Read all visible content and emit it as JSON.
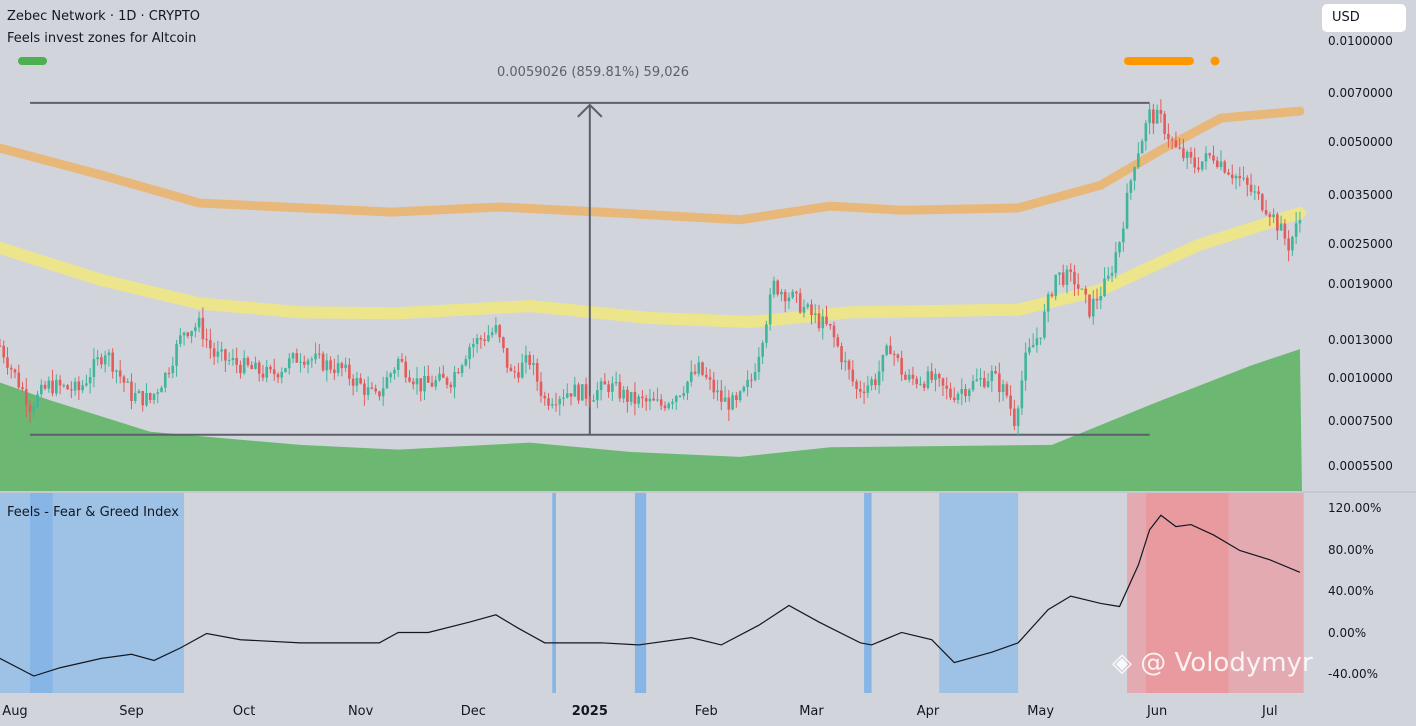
{
  "header": {
    "symbol_line": "Zebec Network · 1D · CRYPTO",
    "indicator_name": "Feels invest zones for Altcoin",
    "currency_button": "USD"
  },
  "lower_pane": {
    "title": "Feels - Fear & Greed Index"
  },
  "watermark": "@ Volodymyr",
  "colors": {
    "background": "#d2d4dc",
    "candle_up": "#3fb59a",
    "candle_down": "#e25c5c",
    "upper_band": "#e8b87a",
    "middle_band": "#ede58c",
    "lower_zone": "#6cb872",
    "fear_zone": "#9dc2e6",
    "greed_zone": "#e3aab2",
    "index_line": "#131722",
    "measure": "#5d606b"
  },
  "chart_data": [
    {
      "type": "candlestick",
      "title": "Zebec Network · 1D · CRYPTO",
      "y_scale": "log",
      "ylim": [
        0.0005,
        0.0105
      ],
      "xlim": [
        "2024-07-28",
        "2025-07-11"
      ],
      "y_ticks": [
        "0.0100000",
        "0.0070000",
        "0.0050000",
        "0.0035000",
        "0.0025000",
        "0.0019000",
        "0.0013000",
        "0.0010000",
        "0.0007500",
        "0.0005500"
      ],
      "y_tick_values": [
        0.01,
        0.007,
        0.005,
        0.0035,
        0.0025,
        0.0019,
        0.0013,
        0.001,
        0.00075,
        0.00055
      ],
      "x_ticks": [
        {
          "label": "Aug",
          "date": "2024-08-01"
        },
        {
          "label": "Sep",
          "date": "2024-09-01"
        },
        {
          "label": "Oct",
          "date": "2024-10-01"
        },
        {
          "label": "Nov",
          "date": "2024-11-01"
        },
        {
          "label": "Dec",
          "date": "2024-12-01"
        },
        {
          "label": "2025",
          "date": "2025-01-01",
          "year": true
        },
        {
          "label": "Feb",
          "date": "2025-02-01"
        },
        {
          "label": "Mar",
          "date": "2025-03-01"
        },
        {
          "label": "Apr",
          "date": "2025-04-01"
        },
        {
          "label": "May",
          "date": "2025-05-01"
        },
        {
          "label": "Jun",
          "date": "2025-06-01"
        },
        {
          "label": "Jul",
          "date": "2025-07-01"
        }
      ],
      "close_path": [
        [
          "2024-07-28",
          0.00126
        ],
        [
          "2024-08-05",
          0.00084
        ],
        [
          "2024-08-10",
          0.00096
        ],
        [
          "2024-08-18",
          0.00093
        ],
        [
          "2024-08-25",
          0.00122
        ],
        [
          "2024-09-01",
          0.0009
        ],
        [
          "2024-09-06",
          0.00087
        ],
        [
          "2024-09-10",
          0.00103
        ],
        [
          "2024-09-15",
          0.0014
        ],
        [
          "2024-09-19",
          0.00145
        ],
        [
          "2024-09-23",
          0.00118
        ],
        [
          "2024-10-03",
          0.00107
        ],
        [
          "2024-10-08",
          0.00103
        ],
        [
          "2024-10-16",
          0.00118
        ],
        [
          "2024-10-27",
          0.00107
        ],
        [
          "2024-11-05",
          0.00088
        ],
        [
          "2024-11-11",
          0.00114
        ],
        [
          "2024-11-17",
          0.00096
        ],
        [
          "2024-11-25",
          0.001
        ],
        [
          "2024-11-30",
          0.00126
        ],
        [
          "2024-12-07",
          0.0014
        ],
        [
          "2024-12-11",
          0.00103
        ],
        [
          "2024-12-16",
          0.00114
        ],
        [
          "2024-12-20",
          0.00087
        ],
        [
          "2024-12-27",
          0.00093
        ],
        [
          "2025-01-01",
          0.0009
        ],
        [
          "2025-01-06",
          0.00096
        ],
        [
          "2025-01-12",
          0.00087
        ],
        [
          "2025-01-20",
          0.00084
        ],
        [
          "2025-01-25",
          0.00093
        ],
        [
          "2025-01-30",
          0.00107
        ],
        [
          "2025-02-05",
          0.00087
        ],
        [
          "2025-02-09",
          0.00084
        ],
        [
          "2025-02-13",
          0.001
        ],
        [
          "2025-02-15",
          0.00122
        ],
        [
          "2025-02-19",
          0.0019
        ],
        [
          "2025-02-23",
          0.00178
        ],
        [
          "2025-03-01",
          0.00155
        ],
        [
          "2025-03-06",
          0.0014
        ],
        [
          "2025-03-13",
          0.00093
        ],
        [
          "2025-03-18",
          0.001
        ],
        [
          "2025-03-22",
          0.00126
        ],
        [
          "2025-03-26",
          0.001
        ],
        [
          "2025-04-02",
          0.001
        ],
        [
          "2025-04-07",
          0.0009
        ],
        [
          "2025-04-12",
          0.00096
        ],
        [
          "2025-04-18",
          0.00103
        ],
        [
          "2025-04-22",
          0.0009
        ],
        [
          "2025-04-24",
          0.00076
        ],
        [
          "2025-04-27",
          0.00114
        ],
        [
          "2025-05-01",
          0.0014
        ],
        [
          "2025-05-05",
          0.00204
        ],
        [
          "2025-05-10",
          0.00197
        ],
        [
          "2025-05-14",
          0.00161
        ],
        [
          "2025-05-19",
          0.00197
        ],
        [
          "2025-05-22",
          0.00259
        ],
        [
          "2025-05-26",
          0.00446
        ],
        [
          "2025-05-30",
          0.00607
        ],
        [
          "2025-06-02",
          0.00586
        ],
        [
          "2025-06-06",
          0.00478
        ],
        [
          "2025-06-11",
          0.00431
        ],
        [
          "2025-06-16",
          0.00462
        ],
        [
          "2025-06-23",
          0.0039
        ],
        [
          "2025-07-01",
          0.00317
        ],
        [
          "2025-07-06",
          0.0025
        ],
        [
          "2025-07-09",
          0.00297
        ]
      ],
      "bands": {
        "upper": [
          [
            "2024-07-28",
            0.00484
          ],
          [
            "2024-08-24",
            0.00403
          ],
          [
            "2024-09-19",
            0.00333
          ],
          [
            "2024-11-09",
            0.00313
          ],
          [
            "2024-12-08",
            0.00324
          ],
          [
            "2025-01-04",
            0.00313
          ],
          [
            "2025-02-10",
            0.00297
          ],
          [
            "2025-03-06",
            0.00326
          ],
          [
            "2025-03-25",
            0.00317
          ],
          [
            "2025-04-25",
            0.00322
          ],
          [
            "2025-05-17",
            0.00376
          ],
          [
            "2025-06-02",
            0.00478
          ],
          [
            "2025-06-18",
            0.00594
          ],
          [
            "2025-07-09",
            0.00623
          ]
        ],
        "middle": [
          [
            "2024-07-28",
            0.00245
          ],
          [
            "2024-08-24",
            0.00197
          ],
          [
            "2024-09-19",
            0.00168
          ],
          [
            "2024-10-16",
            0.00158
          ],
          [
            "2024-11-11",
            0.00157
          ],
          [
            "2024-12-16",
            0.00165
          ],
          [
            "2025-01-17",
            0.00152
          ],
          [
            "2025-02-13",
            0.00148
          ],
          [
            "2025-03-11",
            0.00158
          ],
          [
            "2025-04-25",
            0.00161
          ],
          [
            "2025-05-17",
            0.00184
          ],
          [
            "2025-06-12",
            0.0025
          ],
          [
            "2025-07-09",
            0.00311
          ]
        ],
        "lower_zone_top": [
          [
            "2024-07-28",
            0.00098
          ],
          [
            "2024-08-10",
            0.00087
          ],
          [
            "2024-09-06",
            0.0007
          ],
          [
            "2024-10-16",
            0.00064
          ],
          [
            "2024-11-11",
            0.00062
          ],
          [
            "2024-12-16",
            0.00065
          ],
          [
            "2025-01-12",
            0.00061
          ],
          [
            "2025-02-10",
            0.00059
          ],
          [
            "2025-03-06",
            0.00063
          ],
          [
            "2025-05-04",
            0.00064
          ],
          [
            "2025-05-30",
            0.00084
          ],
          [
            "2025-06-26",
            0.0011
          ],
          [
            "2025-07-09",
            0.00123
          ]
        ]
      },
      "measure": {
        "label": "0.0059026 (859.81%) 59,026",
        "from_date": "2024-08-05",
        "to_date": "2025-05-30",
        "arrow_date": "2025-01-01",
        "low": 0.000686,
        "high": 0.0065886
      }
    },
    {
      "type": "line",
      "title": "Feels - Fear & Greed Index",
      "ylim": [
        -50,
        130
      ],
      "y_ticks": [
        "120.00%",
        "80.00%",
        "40.00%",
        "0.00%",
        "-40.00%"
      ],
      "y_tick_values": [
        120,
        80,
        40,
        0,
        -40
      ],
      "series": [
        {
          "values": [
            [
              "2024-07-28",
              -24
            ],
            [
              "2024-08-06",
              -41
            ],
            [
              "2024-08-13",
              -33
            ],
            [
              "2024-08-24",
              -24
            ],
            [
              "2024-09-01",
              -20
            ],
            [
              "2024-09-07",
              -26
            ],
            [
              "2024-09-14",
              -14
            ],
            [
              "2024-09-21",
              0
            ],
            [
              "2024-09-30",
              -6
            ],
            [
              "2024-10-16",
              -9
            ],
            [
              "2024-11-06",
              -9
            ],
            [
              "2024-11-11",
              1
            ],
            [
              "2024-11-19",
              1
            ],
            [
              "2024-11-30",
              11
            ],
            [
              "2024-12-07",
              18
            ],
            [
              "2024-12-13",
              5
            ],
            [
              "2024-12-20",
              -9
            ],
            [
              "2025-01-04",
              -9
            ],
            [
              "2025-01-14",
              -11
            ],
            [
              "2025-01-28",
              -4
            ],
            [
              "2025-02-05",
              -11
            ],
            [
              "2025-02-15",
              8
            ],
            [
              "2025-02-23",
              27
            ],
            [
              "2025-03-03",
              11
            ],
            [
              "2025-03-14",
              -9
            ],
            [
              "2025-03-17",
              -11
            ],
            [
              "2025-03-25",
              1
            ],
            [
              "2025-04-02",
              -6
            ],
            [
              "2025-04-08",
              -28
            ],
            [
              "2025-04-18",
              -18
            ],
            [
              "2025-04-25",
              -9
            ],
            [
              "2025-05-03",
              23
            ],
            [
              "2025-05-09",
              36
            ],
            [
              "2025-05-17",
              29
            ],
            [
              "2025-05-22",
              26
            ],
            [
              "2025-05-27",
              66
            ],
            [
              "2025-05-30",
              100
            ],
            [
              "2025-06-02",
              114
            ],
            [
              "2025-06-06",
              103
            ],
            [
              "2025-06-10",
              105
            ],
            [
              "2025-06-16",
              95
            ],
            [
              "2025-06-23",
              80
            ],
            [
              "2025-07-01",
              71
            ],
            [
              "2025-07-09",
              59
            ]
          ]
        }
      ],
      "zones": [
        {
          "kind": "fear",
          "from": "2024-07-28",
          "to": "2024-09-15"
        },
        {
          "kind": "extreme_fear",
          "from": "2024-08-05",
          "to": "2024-08-11"
        },
        {
          "kind": "extreme_fear",
          "from": "2024-12-22",
          "to": "2024-12-23"
        },
        {
          "kind": "extreme_fear",
          "from": "2025-01-13",
          "to": "2025-01-16"
        },
        {
          "kind": "extreme_fear",
          "from": "2025-03-15",
          "to": "2025-03-17"
        },
        {
          "kind": "fear",
          "from": "2025-04-04",
          "to": "2025-04-25"
        },
        {
          "kind": "greed",
          "from": "2025-05-24",
          "to": "2025-07-10"
        },
        {
          "kind": "extreme_greed",
          "from": "2025-05-29",
          "to": "2025-06-20"
        }
      ]
    }
  ]
}
